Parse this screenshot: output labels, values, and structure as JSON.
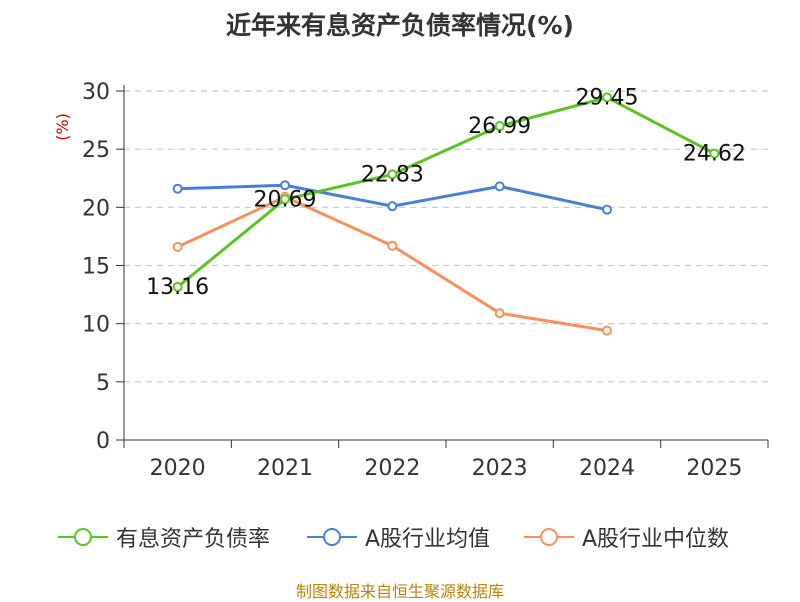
{
  "chart_data": {
    "type": "line",
    "title": "近年来有息资产负债率情况(%)",
    "ylabel": "(%)",
    "xlabel": "",
    "ylim": [
      0,
      30
    ],
    "yticks": [
      0,
      5,
      10,
      15,
      20,
      25,
      30
    ],
    "categories": [
      "2020",
      "2021",
      "2022",
      "2023",
      "2024",
      "2025"
    ],
    "grid": true,
    "legend_position": "bottom",
    "series": [
      {
        "name": "有息资产负债率",
        "color": "#5bc424",
        "values": [
          13.16,
          20.69,
          22.83,
          26.99,
          29.45,
          24.62
        ],
        "labels": [
          "13.16",
          "20.69",
          "22.83",
          "26.99",
          "29.45",
          "24.62"
        ],
        "show_labels": true
      },
      {
        "name": "A股行业均值",
        "color": "#4a7fd8",
        "values": [
          21.6,
          21.9,
          20.1,
          21.8,
          19.8,
          null
        ],
        "show_labels": false
      },
      {
        "name": "A股行业中位数",
        "color": "#f8915c",
        "values": [
          16.6,
          20.9,
          16.7,
          10.9,
          9.4,
          null
        ],
        "show_labels": false
      }
    ]
  },
  "source": "制图数据来自恒生聚源数据库"
}
